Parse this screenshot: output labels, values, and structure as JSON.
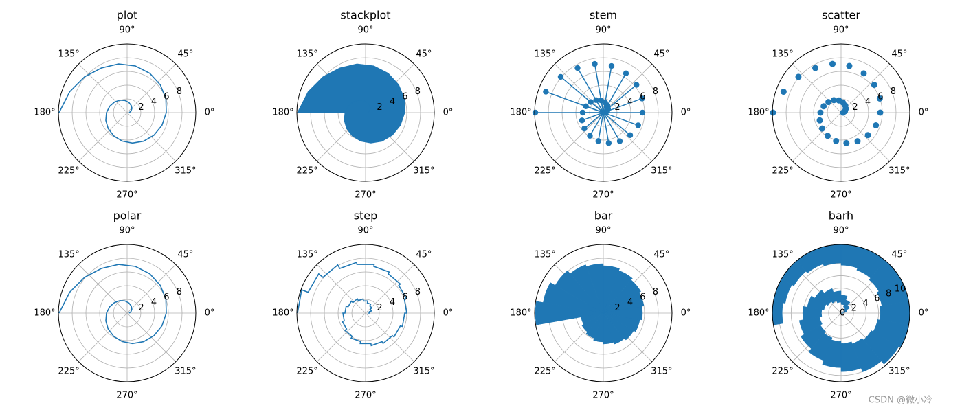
{
  "figure": {
    "watermark": "CSDN @微小冷",
    "colors": {
      "series": "#1f77b4",
      "grid": "#b0b0b0",
      "spine": "#000000"
    }
  },
  "chart_data": [
    {
      "type": "line",
      "title": "plot",
      "rlim": [
        0,
        10
      ],
      "r_ticks": [
        "2",
        "4",
        "6",
        "8"
      ],
      "theta_ticks": [
        "0°",
        "45°",
        "90°",
        "135°",
        "180°",
        "225°",
        "270°",
        "315°"
      ],
      "theta_deg": [
        0,
        20,
        40,
        60,
        80,
        100,
        120,
        140,
        160,
        180,
        200,
        220,
        240,
        260,
        280,
        300,
        320,
        340,
        360,
        380,
        400,
        420,
        440,
        460,
        480,
        500,
        520,
        540
      ],
      "r": [
        0.3,
        0.6,
        0.9,
        1.2,
        1.5,
        1.8,
        2.1,
        2.4,
        2.7,
        3.0,
        3.3,
        3.6,
        3.9,
        4.2,
        4.5,
        4.8,
        5.1,
        5.4,
        5.7,
        6.0,
        6.3,
        6.6,
        6.9,
        7.2,
        7.5,
        8.1,
        8.9,
        9.9
      ]
    },
    {
      "type": "area",
      "title": "stackplot",
      "rlim": [
        0,
        10
      ],
      "r_ticks": [
        "2",
        "4",
        "6",
        "8"
      ],
      "theta_ticks": [
        "0°",
        "45°",
        "90°",
        "135°",
        "180°",
        "225°",
        "270°",
        "315°"
      ],
      "theta_deg": [
        0,
        20,
        40,
        60,
        80,
        100,
        120,
        140,
        160,
        180,
        200,
        220,
        240,
        260,
        280,
        300,
        320,
        340,
        360,
        380,
        400,
        420,
        440,
        460,
        480,
        500,
        520,
        540
      ],
      "r": [
        0.3,
        0.6,
        0.9,
        1.2,
        1.5,
        1.8,
        2.1,
        2.4,
        2.7,
        3.0,
        3.3,
        3.6,
        3.9,
        4.2,
        4.5,
        4.8,
        5.1,
        5.4,
        5.7,
        6.0,
        6.3,
        6.6,
        6.9,
        7.2,
        7.5,
        8.1,
        8.9,
        9.9
      ]
    },
    {
      "type": "stem",
      "title": "stem",
      "rlim": [
        0,
        10
      ],
      "r_ticks": [
        "2",
        "4",
        "6",
        "8"
      ],
      "theta_ticks": [
        "0°",
        "45°",
        "90°",
        "135°",
        "180°",
        "225°",
        "270°",
        "315°"
      ],
      "theta_deg": [
        0,
        20,
        40,
        60,
        80,
        100,
        120,
        140,
        160,
        180,
        200,
        220,
        240,
        260,
        280,
        300,
        320,
        340,
        360,
        380,
        400,
        420,
        440,
        460,
        480,
        500,
        520,
        540
      ],
      "r": [
        0.3,
        0.6,
        0.9,
        1.2,
        1.5,
        1.8,
        2.1,
        2.4,
        2.7,
        3.0,
        3.3,
        3.6,
        3.9,
        4.2,
        4.5,
        4.8,
        5.1,
        5.4,
        5.7,
        6.0,
        6.3,
        6.6,
        6.9,
        7.2,
        7.5,
        8.1,
        8.9,
        9.9
      ]
    },
    {
      "type": "scatter",
      "title": "scatter",
      "rlim": [
        0,
        10
      ],
      "r_ticks": [
        "2",
        "4",
        "6",
        "8"
      ],
      "theta_ticks": [
        "0°",
        "45°",
        "90°",
        "135°",
        "180°",
        "225°",
        "270°",
        "315°"
      ],
      "theta_deg": [
        0,
        20,
        40,
        60,
        80,
        100,
        120,
        140,
        160,
        180,
        200,
        220,
        240,
        260,
        280,
        300,
        320,
        340,
        360,
        380,
        400,
        420,
        440,
        460,
        480,
        500,
        520,
        540
      ],
      "r": [
        0.3,
        0.6,
        0.9,
        1.2,
        1.5,
        1.8,
        2.1,
        2.4,
        2.7,
        3.0,
        3.3,
        3.6,
        3.9,
        4.2,
        4.5,
        4.8,
        5.1,
        5.4,
        5.7,
        6.0,
        6.3,
        6.6,
        6.9,
        7.2,
        7.5,
        8.1,
        8.9,
        9.9
      ]
    },
    {
      "type": "line",
      "title": "polar",
      "rlim": [
        0,
        10
      ],
      "r_ticks": [
        "2",
        "4",
        "6",
        "8"
      ],
      "theta_ticks": [
        "0°",
        "45°",
        "90°",
        "135°",
        "180°",
        "225°",
        "270°",
        "315°"
      ],
      "theta_deg": [
        0,
        20,
        40,
        60,
        80,
        100,
        120,
        140,
        160,
        180,
        200,
        220,
        240,
        260,
        280,
        300,
        320,
        340,
        360,
        380,
        400,
        420,
        440,
        460,
        480,
        500,
        520,
        540
      ],
      "r": [
        0.3,
        0.6,
        0.9,
        1.2,
        1.5,
        1.8,
        2.1,
        2.4,
        2.7,
        3.0,
        3.3,
        3.6,
        3.9,
        4.2,
        4.5,
        4.8,
        5.1,
        5.4,
        5.7,
        6.0,
        6.3,
        6.6,
        6.9,
        7.2,
        7.5,
        8.1,
        8.9,
        9.9
      ]
    },
    {
      "type": "step",
      "title": "step",
      "rlim": [
        0,
        10
      ],
      "r_ticks": [
        "2",
        "4",
        "6",
        "8"
      ],
      "theta_ticks": [
        "0°",
        "45°",
        "90°",
        "135°",
        "180°",
        "225°",
        "270°",
        "315°"
      ],
      "theta_deg": [
        0,
        20,
        40,
        60,
        80,
        100,
        120,
        140,
        160,
        180,
        200,
        220,
        240,
        260,
        280,
        300,
        320,
        340,
        360,
        380,
        400,
        420,
        440,
        460,
        480,
        500,
        520,
        540
      ],
      "r": [
        0.3,
        0.6,
        0.9,
        1.2,
        1.5,
        1.8,
        2.1,
        2.4,
        2.7,
        3.0,
        3.3,
        3.6,
        3.9,
        4.2,
        4.5,
        4.8,
        5.1,
        5.4,
        5.7,
        6.0,
        6.3,
        6.6,
        6.9,
        7.2,
        7.5,
        8.1,
        8.9,
        9.9
      ]
    },
    {
      "type": "bar",
      "title": "bar",
      "rlim": [
        0,
        10
      ],
      "r_ticks": [
        "2",
        "4",
        "6",
        "8"
      ],
      "theta_ticks": [
        "0°",
        "45°",
        "90°",
        "135°",
        "180°",
        "225°",
        "270°",
        "315°"
      ],
      "theta_deg": [
        0,
        20,
        40,
        60,
        80,
        100,
        120,
        140,
        160,
        180,
        200,
        220,
        240,
        260,
        280,
        300,
        320,
        340,
        360,
        380,
        400,
        420,
        440,
        460,
        480,
        500,
        520,
        540
      ],
      "r": [
        0.3,
        0.6,
        0.9,
        1.2,
        1.5,
        1.8,
        2.1,
        2.4,
        2.7,
        3.0,
        3.3,
        3.6,
        3.9,
        4.2,
        4.5,
        4.8,
        5.1,
        5.4,
        5.7,
        6.0,
        6.3,
        6.6,
        6.9,
        7.2,
        7.5,
        8.1,
        8.9,
        9.9
      ]
    },
    {
      "type": "barh",
      "title": "barh",
      "rlim": [
        0,
        11
      ],
      "r_ticks": [
        "0",
        "2",
        "4",
        "6",
        "8",
        "10"
      ],
      "theta_ticks": [
        "0°",
        "45°",
        "90°",
        "135°",
        "180°",
        "225°",
        "270°",
        "315°"
      ],
      "theta_deg": [
        0,
        20,
        40,
        60,
        80,
        100,
        120,
        140,
        160,
        180,
        200,
        220,
        240,
        260,
        280,
        300,
        320,
        340,
        360,
        380,
        400,
        420,
        440,
        460,
        480,
        500,
        520,
        540
      ],
      "r": [
        0.3,
        0.6,
        0.9,
        1.2,
        1.5,
        1.8,
        2.1,
        2.4,
        2.7,
        3.0,
        3.3,
        3.6,
        3.9,
        4.2,
        4.5,
        4.8,
        5.1,
        5.4,
        5.7,
        6.0,
        6.3,
        6.6,
        6.9,
        7.2,
        7.5,
        8.1,
        8.9,
        9.9
      ]
    }
  ]
}
